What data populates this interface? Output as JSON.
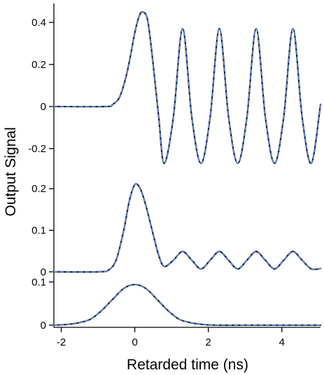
{
  "chart_data": {
    "type": "line",
    "ylabel": "Output Signal",
    "xlabel": "Retarded time (ns)",
    "xlim": [
      -2.2,
      5.05
    ],
    "xticks": [
      -2,
      0,
      2,
      4
    ],
    "xtick_labels": [
      "-2",
      "0",
      "2",
      "4"
    ],
    "grid": false,
    "panels": [
      {
        "name": "top",
        "ylim": [
          -0.33,
          0.49
        ],
        "yticks": [
          0.4,
          0.2,
          0,
          -0.2
        ],
        "ytick_labels": [
          "0.4",
          "0.2",
          "0",
          "-0.2"
        ],
        "series": [
          {
            "style": "solid",
            "color": "#1a1a1a",
            "x": [
              -2.2,
              -0.8,
              -0.6,
              -0.4,
              -0.2,
              0.0,
              0.1,
              0.2,
              0.35,
              0.5,
              0.65,
              0.8,
              1.05,
              1.3,
              1.55,
              1.8,
              2.05,
              2.3,
              2.55,
              2.8,
              3.05,
              3.3,
              3.55,
              3.8,
              4.05,
              4.3,
              4.55,
              4.8,
              5.05
            ],
            "y": [
              0,
              0,
              0.01,
              0.05,
              0.17,
              0.35,
              0.42,
              0.45,
              0.41,
              0.2,
              -0.05,
              -0.27,
              -0.05,
              0.37,
              -0.05,
              -0.27,
              -0.05,
              0.37,
              -0.05,
              -0.27,
              -0.05,
              0.37,
              -0.05,
              -0.27,
              -0.05,
              0.37,
              -0.05,
              -0.27,
              0.01
            ]
          },
          {
            "style": "dashed",
            "color": "#5b8def",
            "x": [
              -2.2,
              -0.8,
              -0.6,
              -0.4,
              -0.2,
              0.0,
              0.1,
              0.2,
              0.35,
              0.5,
              0.65,
              0.8,
              1.05,
              1.3,
              1.55,
              1.8,
              2.05,
              2.3,
              2.55,
              2.8,
              3.05,
              3.3,
              3.55,
              3.8,
              4.05,
              4.3,
              4.55,
              4.8,
              5.05
            ],
            "y": [
              0,
              0,
              0.01,
              0.05,
              0.17,
              0.35,
              0.42,
              0.45,
              0.41,
              0.2,
              -0.05,
              -0.27,
              -0.05,
              0.37,
              -0.05,
              -0.27,
              -0.05,
              0.37,
              -0.05,
              -0.27,
              -0.05,
              0.37,
              -0.05,
              -0.27,
              -0.05,
              0.37,
              -0.05,
              -0.27,
              0.01
            ]
          }
        ]
      },
      {
        "name": "middle",
        "ylim": [
          -0.002,
          0.224
        ],
        "yticks": [
          0.2,
          0.1,
          0
        ],
        "ytick_labels": [
          "0.2",
          "0.1",
          "0"
        ],
        "series": [
          {
            "style": "solid",
            "color": "#1a1a1a",
            "x": [
              -2.2,
              -1.0,
              -0.7,
              -0.5,
              -0.3,
              -0.15,
              0.0,
              0.15,
              0.3,
              0.5,
              0.65,
              0.8,
              1.05,
              1.3,
              1.55,
              1.8,
              2.05,
              2.3,
              2.55,
              2.8,
              3.05,
              3.3,
              3.55,
              3.8,
              4.05,
              4.3,
              4.55,
              4.8,
              5.05
            ],
            "y": [
              0,
              0,
              0.005,
              0.03,
              0.1,
              0.17,
              0.21,
              0.2,
              0.16,
              0.09,
              0.04,
              0.013,
              0.028,
              0.049,
              0.028,
              0.007,
              0.028,
              0.049,
              0.028,
              0.007,
              0.028,
              0.049,
              0.028,
              0.007,
              0.028,
              0.049,
              0.028,
              0.007,
              0.008
            ]
          },
          {
            "style": "dashed",
            "color": "#5b8def",
            "x": [
              -2.2,
              -1.0,
              -0.7,
              -0.5,
              -0.3,
              -0.15,
              0.0,
              0.15,
              0.3,
              0.5,
              0.65,
              0.8,
              1.05,
              1.3,
              1.55,
              1.8,
              2.05,
              2.3,
              2.55,
              2.8,
              3.05,
              3.3,
              3.55,
              3.8,
              4.05,
              4.3,
              4.55,
              4.8,
              5.05
            ],
            "y": [
              0,
              0,
              0.005,
              0.03,
              0.1,
              0.17,
              0.21,
              0.2,
              0.16,
              0.09,
              0.04,
              0.013,
              0.028,
              0.049,
              0.028,
              0.007,
              0.028,
              0.049,
              0.028,
              0.007,
              0.028,
              0.049,
              0.028,
              0.007,
              0.028,
              0.049,
              0.028,
              0.007,
              0.008
            ]
          }
        ]
      },
      {
        "name": "bottom",
        "ylim": [
          -0.005,
          0.115
        ],
        "yticks": [
          0.1,
          0
        ],
        "ytick_labels": [
          "0.1",
          "0"
        ],
        "series": [
          {
            "style": "solid",
            "color": "#1a1a1a",
            "x": [
              -2.2,
              -1.8,
              -1.5,
              -1.2,
              -0.9,
              -0.6,
              -0.3,
              0.0,
              0.3,
              0.6,
              0.9,
              1.2,
              1.5,
              1.8,
              2.2,
              3.0,
              4.0,
              5.05
            ],
            "y": [
              0,
              0.002,
              0.006,
              0.014,
              0.034,
              0.06,
              0.085,
              0.094,
              0.085,
              0.06,
              0.034,
              0.014,
              0.006,
              0.002,
              0,
              0,
              0,
              0
            ]
          },
          {
            "style": "dashed",
            "color": "#5b8def",
            "x": [
              -2.2,
              -1.8,
              -1.5,
              -1.2,
              -0.9,
              -0.6,
              -0.3,
              0.0,
              0.3,
              0.6,
              0.9,
              1.2,
              1.5,
              1.8,
              2.2,
              3.0,
              4.0,
              5.05
            ],
            "y": [
              0,
              0.002,
              0.006,
              0.014,
              0.034,
              0.06,
              0.085,
              0.094,
              0.085,
              0.06,
              0.034,
              0.014,
              0.006,
              0.002,
              0,
              0,
              0,
              0
            ]
          }
        ]
      }
    ]
  }
}
